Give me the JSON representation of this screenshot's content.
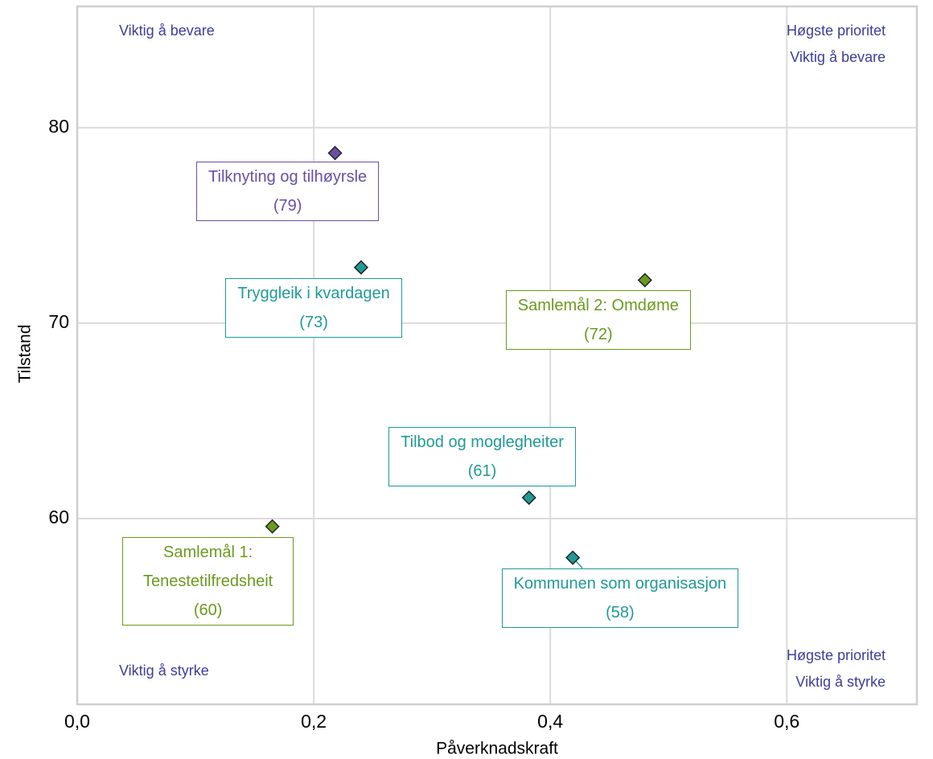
{
  "chart_data": {
    "type": "scatter",
    "xlabel": "Påverknadskraft",
    "ylabel": "Tilstand",
    "xlim": [
      0,
      0.71
    ],
    "ylim": [
      50.5,
      86.2
    ],
    "xticks": [
      {
        "value": 0,
        "label": "0,0"
      },
      {
        "value": 0.2,
        "label": "0,2"
      },
      {
        "value": 0.4,
        "label": "0,4"
      },
      {
        "value": 0.6,
        "label": "0,6"
      }
    ],
    "yticks": [
      60,
      70,
      80
    ],
    "grid": true,
    "series": [
      {
        "name": "Tilknyting og tilhøyrsle",
        "color": "#6a4fa6",
        "x": [
          0.218
        ],
        "values": [
          78.7
        ],
        "value_labels": [
          "(79)"
        ]
      },
      {
        "name": "Tryggleik i kvardagen",
        "color": "#1f9a97",
        "x": [
          0.24
        ],
        "values": [
          72.85
        ],
        "value_labels": [
          "(73)"
        ]
      },
      {
        "name": "Samlemål 2: Omdøme",
        "color": "#6b9a1f",
        "x": [
          0.48
        ],
        "values": [
          72.2
        ],
        "value_labels": [
          "(72)"
        ]
      },
      {
        "name": "Tilbod og moglegheiter",
        "color": "#1f9a97",
        "x": [
          0.382
        ],
        "values": [
          61.07
        ],
        "value_labels": [
          "(61)"
        ]
      },
      {
        "name": "Samlemål 1: Tenestetilfredsheit",
        "color": "#6b9a1f",
        "x": [
          0.165
        ],
        "values": [
          59.6
        ],
        "value_labels": [
          "(60)"
        ]
      },
      {
        "name": "Kommunen som organisasjon",
        "color": "#1f9a97",
        "x": [
          0.419
        ],
        "values": [
          58.0
        ],
        "value_labels": [
          "(58)"
        ]
      }
    ],
    "annotations": [
      {
        "lines": [
          "Viktig å bevare"
        ]
      },
      {
        "lines": [
          "Høgste prioritet",
          "Viktig å bevare"
        ]
      },
      {
        "lines": [
          "Viktig å styrke"
        ]
      },
      {
        "lines": [
          "Høgste prioritet",
          "Viktig å styrke"
        ]
      }
    ]
  }
}
